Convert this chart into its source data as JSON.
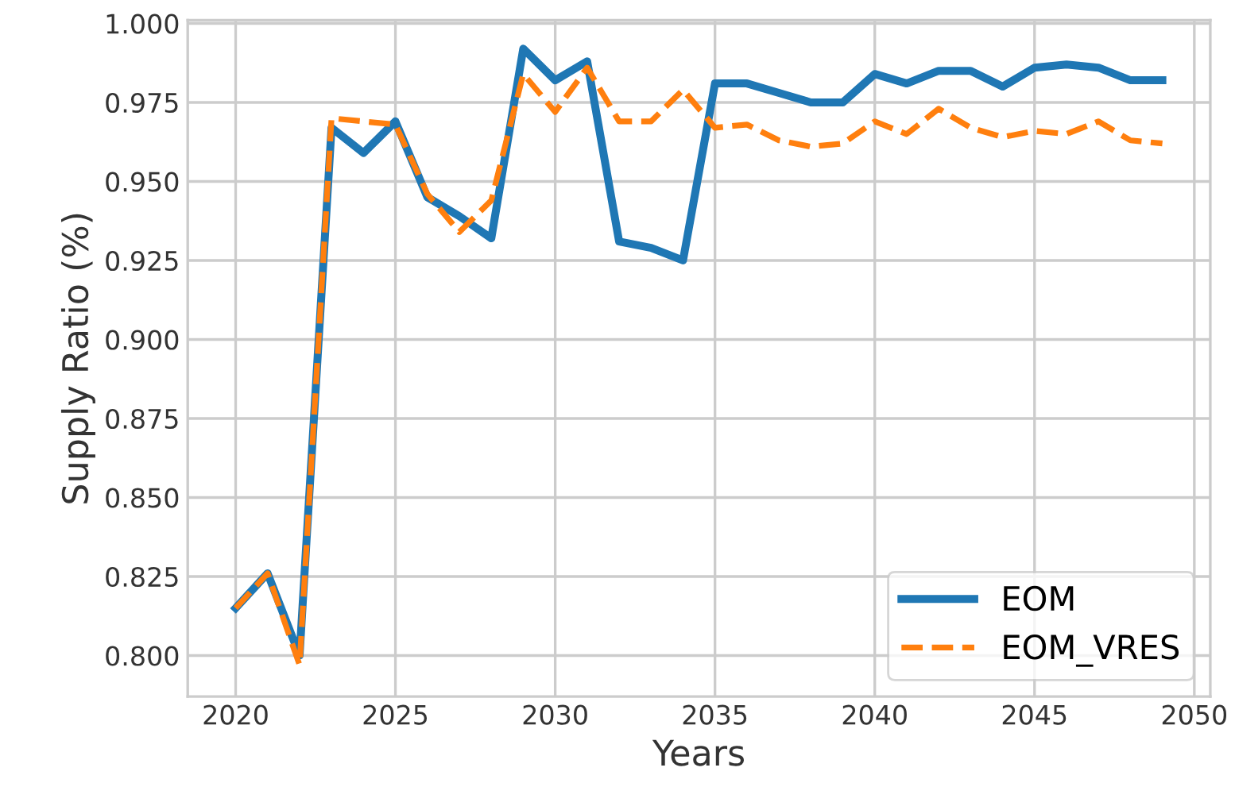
{
  "chart_data": {
    "type": "line",
    "xlabel": "Years",
    "ylabel": "Supply Ratio (%)",
    "x": [
      2020,
      2021,
      2022,
      2023,
      2024,
      2025,
      2026,
      2027,
      2028,
      2029,
      2030,
      2031,
      2032,
      2033,
      2034,
      2035,
      2036,
      2037,
      2038,
      2039,
      2040,
      2041,
      2042,
      2043,
      2044,
      2045,
      2046,
      2047,
      2048,
      2049
    ],
    "series": [
      {
        "name": "EOM",
        "color": "#1f77b4",
        "line_style": "solid",
        "values": [
          0.815,
          0.826,
          0.8,
          0.967,
          0.959,
          0.969,
          0.945,
          0.939,
          0.932,
          0.992,
          0.982,
          0.988,
          0.931,
          0.929,
          0.925,
          0.981,
          0.981,
          0.978,
          0.975,
          0.975,
          0.984,
          0.981,
          0.985,
          0.985,
          0.98,
          0.986,
          0.987,
          0.986,
          0.982,
          0.982
        ]
      },
      {
        "name": "EOM_VRES",
        "color": "#ff7f0e",
        "line_style": "dashed",
        "values": [
          0.815,
          0.826,
          0.797,
          0.97,
          0.969,
          0.968,
          0.946,
          0.934,
          0.944,
          0.984,
          0.972,
          0.986,
          0.969,
          0.969,
          0.979,
          0.967,
          0.968,
          0.963,
          0.961,
          0.962,
          0.969,
          0.965,
          0.973,
          0.967,
          0.964,
          0.966,
          0.965,
          0.969,
          0.963,
          0.962
        ]
      }
    ],
    "xlim": [
      2018.5,
      2050.5
    ],
    "xticks": [
      2020,
      2025,
      2030,
      2035,
      2040,
      2045,
      2050
    ],
    "ylim": [
      0.787,
      1.001
    ],
    "yticks": [
      {
        "value": 0.8,
        "label": "0.800"
      },
      {
        "value": 0.825,
        "label": "0.825"
      },
      {
        "value": 0.85,
        "label": "0.850"
      },
      {
        "value": 0.875,
        "label": "0.875"
      },
      {
        "value": 0.9,
        "label": "0.900"
      },
      {
        "value": 0.925,
        "label": "0.925"
      },
      {
        "value": 0.95,
        "label": "0.950"
      },
      {
        "value": 0.975,
        "label": "0.975"
      },
      {
        "value": 1.0,
        "label": "1.000"
      }
    ],
    "grid": true,
    "legend": "bottom right",
    "marker": "none"
  }
}
